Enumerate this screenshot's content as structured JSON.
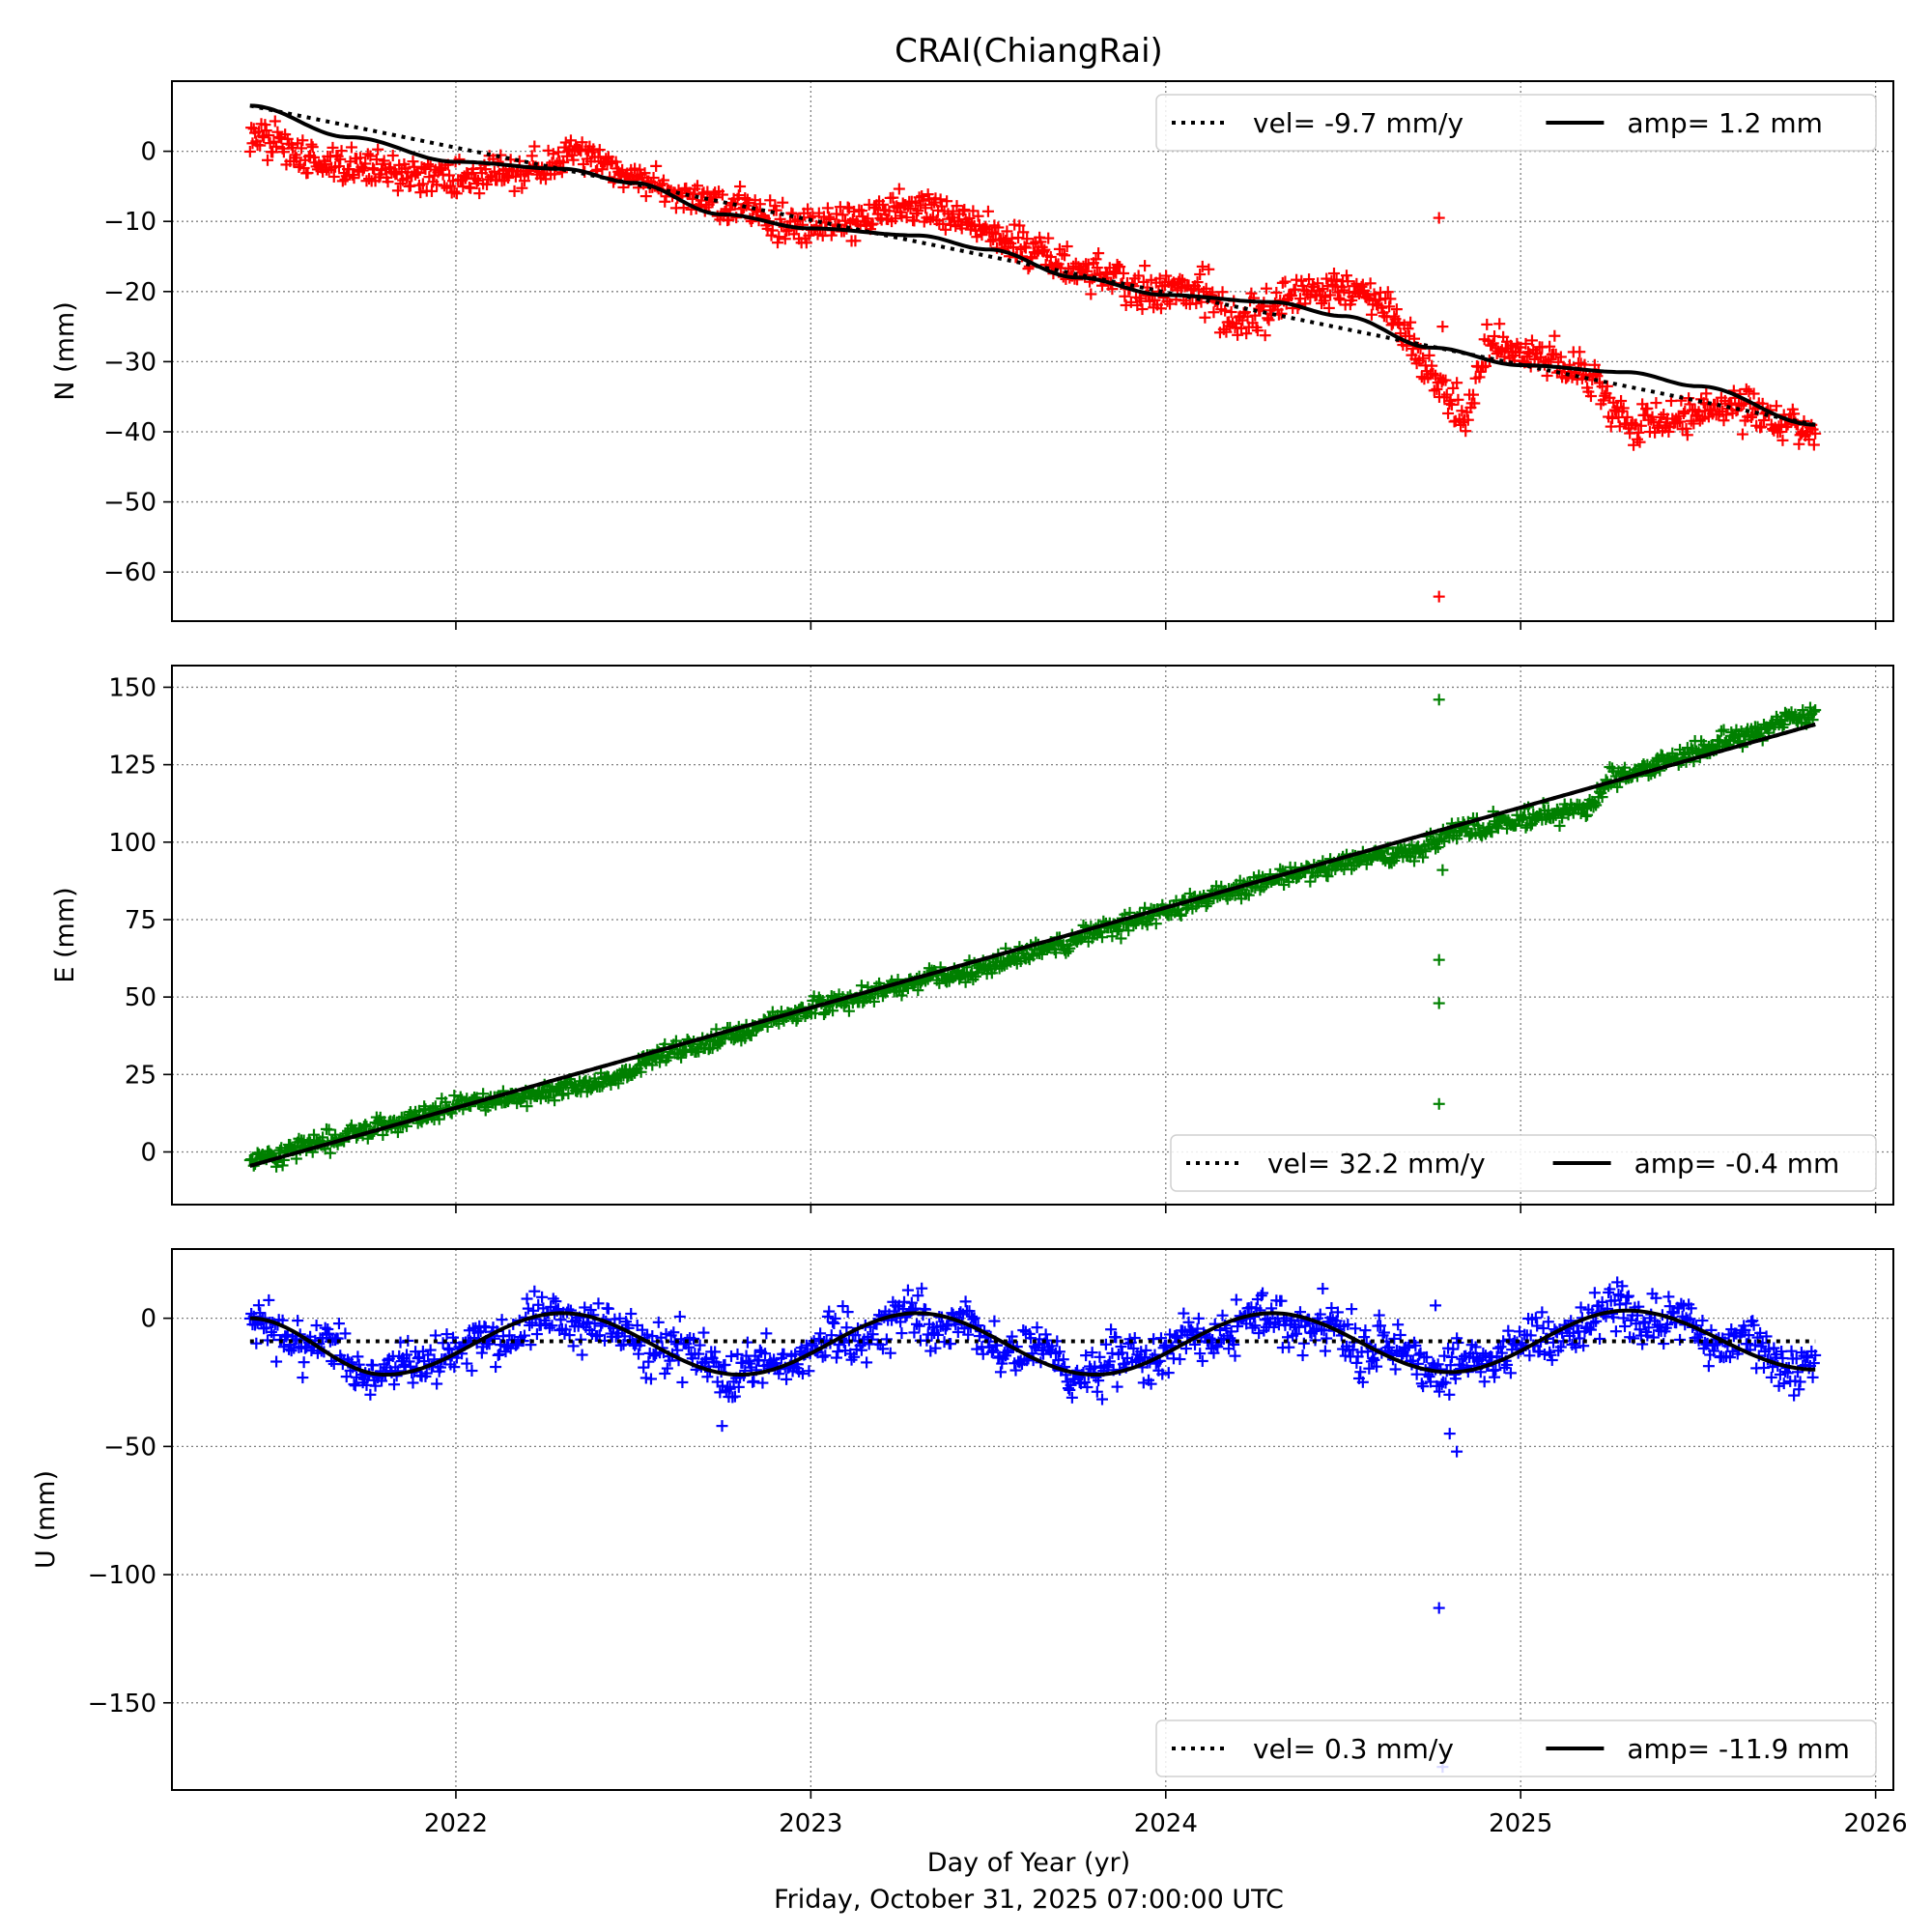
{
  "chart_data": {
    "type": "scatter",
    "title": "CRAI(ChiangRai)",
    "xlabel": "Day of Year (yr)",
    "subtitle": "Friday, October 31, 2025 07:00:00 UTC",
    "xlim": [
      2021.2,
      2026.05
    ],
    "xticks": [
      2022,
      2023,
      2024,
      2025,
      2026
    ],
    "x_start": 2021.42,
    "x_end": 2025.83,
    "panels": [
      {
        "key": "N",
        "ylabel": "N (mm)",
        "ylim": [
          -67,
          10
        ],
        "yticks": [
          0,
          -10,
          -20,
          -30,
          -40,
          -50,
          -60
        ],
        "marker_color": "#ff0000",
        "legend": {
          "vel": "vel= -9.7 mm/y",
          "amp": "amp= 1.2 mm",
          "loc": "upper right"
        },
        "velocity": -9.7,
        "amplitude": 1.2,
        "fit_knots": [
          [
            2021.42,
            6.5
          ],
          [
            2021.7,
            2
          ],
          [
            2022.0,
            -1.5
          ],
          [
            2022.3,
            -2.5
          ],
          [
            2022.5,
            -4.5
          ],
          [
            2022.75,
            -9
          ],
          [
            2023.0,
            -11
          ],
          [
            2023.3,
            -12
          ],
          [
            2023.5,
            -14
          ],
          [
            2023.75,
            -18
          ],
          [
            2024.0,
            -20.5
          ],
          [
            2024.3,
            -21.5
          ],
          [
            2024.5,
            -23.5
          ],
          [
            2024.75,
            -28
          ],
          [
            2025.0,
            -30.5
          ],
          [
            2025.3,
            -31.5
          ],
          [
            2025.5,
            -33.5
          ],
          [
            2025.83,
            -39
          ]
        ],
        "observations_knots": [
          [
            2021.42,
            2
          ],
          [
            2021.6,
            -1
          ],
          [
            2021.8,
            -3
          ],
          [
            2022.0,
            -4
          ],
          [
            2022.2,
            -3
          ],
          [
            2022.35,
            0
          ],
          [
            2022.45,
            -3
          ],
          [
            2022.6,
            -6
          ],
          [
            2022.8,
            -8
          ],
          [
            2023.0,
            -11
          ],
          [
            2023.2,
            -9
          ],
          [
            2023.35,
            -8
          ],
          [
            2023.55,
            -13
          ],
          [
            2023.75,
            -17
          ],
          [
            2023.95,
            -20
          ],
          [
            2024.1,
            -20
          ],
          [
            2024.2,
            -25
          ],
          [
            2024.35,
            -20
          ],
          [
            2024.5,
            -19
          ],
          [
            2024.62,
            -22
          ],
          [
            2024.75,
            -32
          ],
          [
            2024.85,
            -38
          ],
          [
            2024.9,
            -28
          ],
          [
            2025.05,
            -29
          ],
          [
            2025.2,
            -32
          ],
          [
            2025.3,
            -39
          ],
          [
            2025.45,
            -38
          ],
          [
            2025.6,
            -36
          ],
          [
            2025.83,
            -40
          ]
        ],
        "outliers": [
          [
            2024.77,
            -9.5
          ],
          [
            2024.77,
            -63.5
          ],
          [
            2024.78,
            -25
          ]
        ]
      },
      {
        "key": "E",
        "ylabel": "E (mm)",
        "ylim": [
          -17,
          157
        ],
        "yticks": [
          150,
          125,
          100,
          75,
          50,
          25,
          0
        ],
        "marker_color": "#008000",
        "legend": {
          "vel": "vel= 32.2 mm/y",
          "amp": "amp= -0.4 mm",
          "loc": "lower right"
        },
        "velocity": 32.2,
        "amplitude": -0.4,
        "fit_knots": [
          [
            2021.42,
            -4.5
          ],
          [
            2025.83,
            138
          ]
        ],
        "observations_knots": [
          [
            2021.42,
            -3
          ],
          [
            2022.0,
            15
          ],
          [
            2022.3,
            20
          ],
          [
            2022.45,
            23
          ],
          [
            2022.55,
            30
          ],
          [
            2023.0,
            46
          ],
          [
            2023.3,
            55
          ],
          [
            2023.5,
            60
          ],
          [
            2024.0,
            78
          ],
          [
            2024.3,
            88
          ],
          [
            2024.6,
            96
          ],
          [
            2024.72,
            97
          ],
          [
            2024.8,
            103
          ],
          [
            2025.2,
            112
          ],
          [
            2025.25,
            120
          ],
          [
            2025.83,
            142
          ]
        ],
        "outliers": [
          [
            2024.77,
            146
          ],
          [
            2024.77,
            62
          ],
          [
            2024.77,
            48
          ],
          [
            2024.77,
            15.5
          ],
          [
            2024.78,
            91
          ]
        ]
      },
      {
        "key": "U",
        "ylabel": "U (mm)",
        "ylim": [
          -184,
          27
        ],
        "yticks": [
          0,
          -50,
          -100,
          -150
        ],
        "marker_color": "#0000ff",
        "legend": {
          "vel": "vel= 0.3 mm/y",
          "amp": "amp= -11.9 mm",
          "loc": "lower right"
        },
        "velocity": 0.3,
        "amplitude": -11.9,
        "velocity_line_value": -9,
        "fit_knots": [
          [
            2021.42,
            0
          ],
          [
            2021.8,
            -22
          ],
          [
            2022.3,
            2
          ],
          [
            2022.8,
            -22
          ],
          [
            2023.3,
            2
          ],
          [
            2023.8,
            -22
          ],
          [
            2024.3,
            2
          ],
          [
            2024.8,
            -21
          ],
          [
            2025.3,
            3
          ],
          [
            2025.83,
            -20
          ]
        ],
        "outliers": [
          [
            2024.77,
            -113
          ],
          [
            2024.78,
            -175
          ],
          [
            2024.8,
            -45
          ],
          [
            2024.82,
            -52
          ],
          [
            2024.76,
            5
          ],
          [
            2022.75,
            -42
          ]
        ]
      }
    ]
  }
}
